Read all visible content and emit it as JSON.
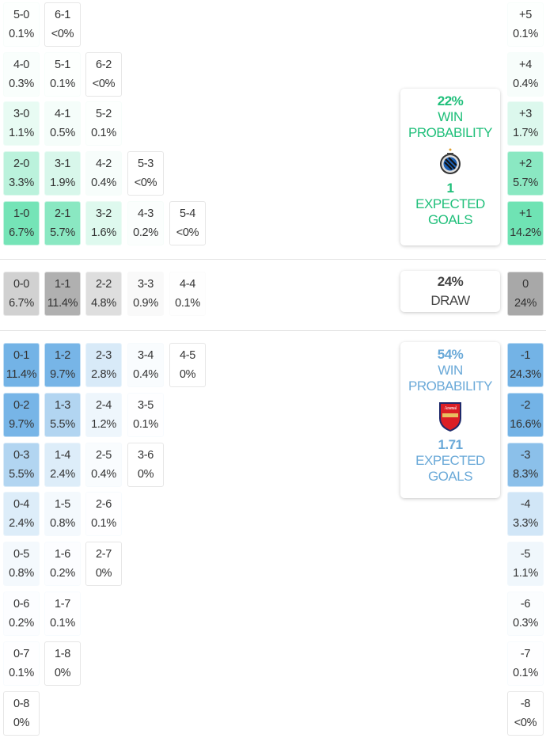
{
  "colors": {
    "home": "#6fe3b4",
    "away": "#73b3e6",
    "draw": "#b0b0b0",
    "home_text": "#1fbf7a",
    "away_text": "#6aa9d8",
    "draw_text": "#444444"
  },
  "home_rows": [
    [
      [
        "5-0",
        "0.1%",
        0.1
      ],
      [
        "6-1",
        "<0%",
        0
      ]
    ],
    [
      [
        "4-0",
        "0.3%",
        0.3
      ],
      [
        "5-1",
        "0.1%",
        0.1
      ],
      [
        "6-2",
        "<0%",
        0
      ]
    ],
    [
      [
        "3-0",
        "1.1%",
        1.1
      ],
      [
        "4-1",
        "0.5%",
        0.5
      ],
      [
        "5-2",
        "0.1%",
        0.1
      ]
    ],
    [
      [
        "2-0",
        "3.3%",
        3.3
      ],
      [
        "3-1",
        "1.9%",
        1.9
      ],
      [
        "4-2",
        "0.4%",
        0.4
      ],
      [
        "5-3",
        "<0%",
        0
      ]
    ],
    [
      [
        "1-0",
        "6.7%",
        6.7
      ],
      [
        "2-1",
        "5.7%",
        5.7
      ],
      [
        "3-2",
        "1.6%",
        1.6
      ],
      [
        "4-3",
        "0.2%",
        0.2
      ],
      [
        "5-4",
        "<0%",
        0
      ]
    ]
  ],
  "draw_row": [
    [
      "0-0",
      "6.7%",
      6.7
    ],
    [
      "1-1",
      "11.4%",
      11.4
    ],
    [
      "2-2",
      "4.8%",
      4.8
    ],
    [
      "3-3",
      "0.9%",
      0.9
    ],
    [
      "4-4",
      "0.1%",
      0.1
    ]
  ],
  "away_rows": [
    [
      [
        "0-1",
        "11.4%",
        11.4
      ],
      [
        "1-2",
        "9.7%",
        9.7
      ],
      [
        "2-3",
        "2.8%",
        2.8
      ],
      [
        "3-4",
        "0.4%",
        0.4
      ],
      [
        "4-5",
        "0%",
        0
      ]
    ],
    [
      [
        "0-2",
        "9.7%",
        9.7
      ],
      [
        "1-3",
        "5.5%",
        5.5
      ],
      [
        "2-4",
        "1.2%",
        1.2
      ],
      [
        "3-5",
        "0.1%",
        0.1
      ]
    ],
    [
      [
        "0-3",
        "5.5%",
        5.5
      ],
      [
        "1-4",
        "2.4%",
        2.4
      ],
      [
        "2-5",
        "0.4%",
        0.4
      ],
      [
        "3-6",
        "0%",
        0
      ]
    ],
    [
      [
        "0-4",
        "2.4%",
        2.4
      ],
      [
        "1-5",
        "0.8%",
        0.8
      ],
      [
        "2-6",
        "0.1%",
        0.1
      ]
    ],
    [
      [
        "0-5",
        "0.8%",
        0.8
      ],
      [
        "1-6",
        "0.2%",
        0.2
      ],
      [
        "2-7",
        "0%",
        0
      ]
    ],
    [
      [
        "0-6",
        "0.2%",
        0.2
      ],
      [
        "1-7",
        "0.1%",
        0.1
      ]
    ],
    [
      [
        "0-7",
        "0.1%",
        0.1
      ],
      [
        "1-8",
        "0%",
        0
      ]
    ],
    [
      [
        "0-8",
        "0%",
        0
      ]
    ]
  ],
  "margin_home": [
    [
      "+5",
      "0.1%",
      0.1
    ],
    [
      "+4",
      "0.4%",
      0.4
    ],
    [
      "+3",
      "1.7%",
      1.7
    ],
    [
      "+2",
      "5.7%",
      5.7
    ],
    [
      "+1",
      "14.2%",
      14.2
    ]
  ],
  "margin_draw": [
    "0",
    "24%",
    24
  ],
  "margin_away": [
    [
      "-1",
      "24.3%",
      24.3
    ],
    [
      "-2",
      "16.6%",
      16.6
    ],
    [
      "-3",
      "8.3%",
      8.3
    ],
    [
      "-4",
      "3.3%",
      3.3
    ],
    [
      "-5",
      "1.1%",
      1.1
    ],
    [
      "-6",
      "0.3%",
      0.3
    ],
    [
      "-7",
      "0.1%",
      0.1
    ],
    [
      "-8",
      "<0%",
      0
    ]
  ],
  "home_card": {
    "win_pct": "22%",
    "win_label_1": "WIN",
    "win_label_2": "PROBABILITY",
    "xg": "1",
    "xg_label_1": "EXPECTED",
    "xg_label_2": "GOALS",
    "crest": "club-brugge-crest"
  },
  "draw_card": {
    "pct": "24%",
    "label": "DRAW"
  },
  "away_card": {
    "win_pct": "54%",
    "win_label_1": "WIN",
    "win_label_2": "PROBABILITY",
    "xg": "1.71",
    "xg_label_1": "EXPECTED",
    "xg_label_2": "GOALS",
    "crest": "arsenal-crest",
    "crest_text": "Arsenal"
  }
}
